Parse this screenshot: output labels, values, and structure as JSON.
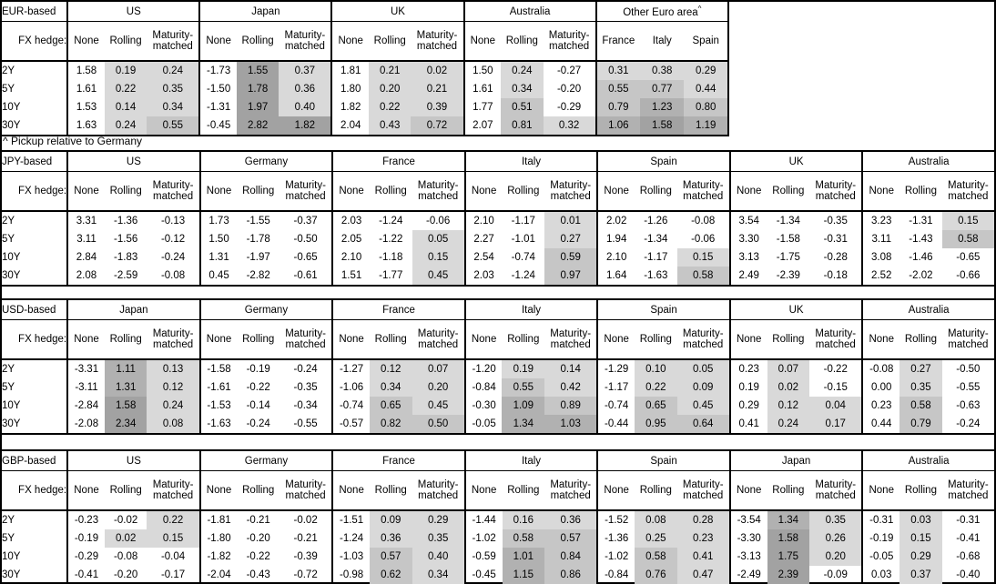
{
  "note": "^ Pickup relative to Germany",
  "fx_hedge_label": "FX hedge:",
  "row_labels": [
    "2Y",
    "5Y",
    "10Y",
    "30Y"
  ],
  "standard_columns": [
    "None",
    "Rolling",
    "Maturity-matched"
  ],
  "shade_colors": {
    "band_0_to_0p5": "#d9d9d9",
    "band_0p5_to_1": "#c6c6c6",
    "band_1_to_1p5": "#b1b1b1",
    "band_above_1p5": "#a2a2a2",
    "negative_or_none": "#ffffff"
  },
  "tables": [
    {
      "title": "EUR-based",
      "groups": [
        {
          "name": "US",
          "cols": [
            "None",
            "Rolling",
            "Maturity-matched"
          ],
          "rows": [
            [
              "1.58",
              "0.19",
              "0.24"
            ],
            [
              "1.61",
              "0.22",
              "0.35"
            ],
            [
              "1.53",
              "0.14",
              "0.34"
            ],
            [
              "1.63",
              "0.24",
              "0.55"
            ]
          ]
        },
        {
          "name": "Japan",
          "cols": [
            "None",
            "Rolling",
            "Maturity-matched"
          ],
          "rows": [
            [
              "-1.73",
              "1.55",
              "0.37"
            ],
            [
              "-1.50",
              "1.78",
              "0.36"
            ],
            [
              "-1.31",
              "1.97",
              "0.40"
            ],
            [
              "-0.45",
              "2.82",
              "1.82"
            ]
          ]
        },
        {
          "name": "UK",
          "cols": [
            "None",
            "Rolling",
            "Maturity-matched"
          ],
          "rows": [
            [
              "1.81",
              "0.21",
              "0.02"
            ],
            [
              "1.80",
              "0.20",
              "0.21"
            ],
            [
              "1.82",
              "0.22",
              "0.39"
            ],
            [
              "2.04",
              "0.43",
              "0.72"
            ]
          ]
        },
        {
          "name": "Australia",
          "cols": [
            "None",
            "Rolling",
            "Maturity-matched"
          ],
          "rows": [
            [
              "1.50",
              "0.24",
              "-0.27"
            ],
            [
              "1.61",
              "0.34",
              "-0.20"
            ],
            [
              "1.77",
              "0.51",
              "-0.29"
            ],
            [
              "2.07",
              "0.81",
              "0.32"
            ]
          ]
        },
        {
          "name": "Other Euro area^",
          "cols": [
            "France",
            "Italy",
            "Spain"
          ],
          "rows": [
            [
              "0.31",
              "0.38",
              "0.29"
            ],
            [
              "0.55",
              "0.77",
              "0.44"
            ],
            [
              "0.79",
              "1.23",
              "0.80"
            ],
            [
              "1.06",
              "1.58",
              "1.19"
            ]
          ]
        }
      ]
    },
    {
      "title": "JPY-based",
      "groups": [
        {
          "name": "US",
          "cols": [
            "None",
            "Rolling",
            "Maturity-matched"
          ],
          "rows": [
            [
              "3.31",
              "-1.36",
              "-0.13"
            ],
            [
              "3.11",
              "-1.56",
              "-0.12"
            ],
            [
              "2.84",
              "-1.83",
              "-0.24"
            ],
            [
              "2.08",
              "-2.59",
              "-0.08"
            ]
          ]
        },
        {
          "name": "Germany",
          "cols": [
            "None",
            "Rolling",
            "Maturity-matched"
          ],
          "rows": [
            [
              "1.73",
              "-1.55",
              "-0.37"
            ],
            [
              "1.50",
              "-1.78",
              "-0.50"
            ],
            [
              "1.31",
              "-1.97",
              "-0.65"
            ],
            [
              "0.45",
              "-2.82",
              "-0.61"
            ]
          ]
        },
        {
          "name": "France",
          "cols": [
            "None",
            "Rolling",
            "Maturity-matched"
          ],
          "rows": [
            [
              "2.03",
              "-1.24",
              "-0.06"
            ],
            [
              "2.05",
              "-1.22",
              "0.05"
            ],
            [
              "2.10",
              "-1.18",
              "0.15"
            ],
            [
              "1.51",
              "-1.77",
              "0.45"
            ]
          ]
        },
        {
          "name": "Italy",
          "cols": [
            "None",
            "Rolling",
            "Maturity-matched"
          ],
          "rows": [
            [
              "2.10",
              "-1.17",
              "0.01"
            ],
            [
              "2.27",
              "-1.01",
              "0.27"
            ],
            [
              "2.54",
              "-0.74",
              "0.59"
            ],
            [
              "2.03",
              "-1.24",
              "0.97"
            ]
          ]
        },
        {
          "name": "Spain",
          "cols": [
            "None",
            "Rolling",
            "Maturity-matched"
          ],
          "rows": [
            [
              "2.02",
              "-1.26",
              "-0.08"
            ],
            [
              "1.94",
              "-1.34",
              "-0.06"
            ],
            [
              "2.10",
              "-1.17",
              "0.15"
            ],
            [
              "1.64",
              "-1.63",
              "0.58"
            ]
          ]
        },
        {
          "name": "UK",
          "cols": [
            "None",
            "Rolling",
            "Maturity-matched"
          ],
          "rows": [
            [
              "3.54",
              "-1.34",
              "-0.35"
            ],
            [
              "3.30",
              "-1.58",
              "-0.31"
            ],
            [
              "3.13",
              "-1.75",
              "-0.28"
            ],
            [
              "2.49",
              "-2.39",
              "-0.18"
            ]
          ]
        },
        {
          "name": "Australia",
          "cols": [
            "None",
            "Rolling",
            "Maturity-matched"
          ],
          "rows": [
            [
              "3.23",
              "-1.31",
              "0.15"
            ],
            [
              "3.11",
              "-1.43",
              "0.58"
            ],
            [
              "3.08",
              "-1.46",
              "-0.65"
            ],
            [
              "2.52",
              "-2.02",
              "-0.66"
            ]
          ]
        }
      ]
    },
    {
      "title": "USD-based",
      "groups": [
        {
          "name": "Japan",
          "cols": [
            "None",
            "Rolling",
            "Maturity-matched"
          ],
          "rows": [
            [
              "-3.31",
              "1.11",
              "0.13"
            ],
            [
              "-3.11",
              "1.31",
              "0.12"
            ],
            [
              "-2.84",
              "1.58",
              "0.24"
            ],
            [
              "-2.08",
              "2.34",
              "0.08"
            ]
          ]
        },
        {
          "name": "Germany",
          "cols": [
            "None",
            "Rolling",
            "Maturity-matched"
          ],
          "rows": [
            [
              "-1.58",
              "-0.19",
              "-0.24"
            ],
            [
              "-1.61",
              "-0.22",
              "-0.35"
            ],
            [
              "-1.53",
              "-0.14",
              "-0.34"
            ],
            [
              "-1.63",
              "-0.24",
              "-0.55"
            ]
          ]
        },
        {
          "name": "France",
          "cols": [
            "None",
            "Rolling",
            "Maturity-matched"
          ],
          "rows": [
            [
              "-1.27",
              "0.12",
              "0.07"
            ],
            [
              "-1.06",
              "0.34",
              "0.20"
            ],
            [
              "-0.74",
              "0.65",
              "0.45"
            ],
            [
              "-0.57",
              "0.82",
              "0.50"
            ]
          ]
        },
        {
          "name": "Italy",
          "cols": [
            "None",
            "Rolling",
            "Maturity-matched"
          ],
          "rows": [
            [
              "-1.20",
              "0.19",
              "0.14"
            ],
            [
              "-0.84",
              "0.55",
              "0.42"
            ],
            [
              "-0.30",
              "1.09",
              "0.89"
            ],
            [
              "-0.05",
              "1.34",
              "1.03"
            ]
          ]
        },
        {
          "name": "Spain",
          "cols": [
            "None",
            "Rolling",
            "Maturity-matched"
          ],
          "rows": [
            [
              "-1.29",
              "0.10",
              "0.05"
            ],
            [
              "-1.17",
              "0.22",
              "0.09"
            ],
            [
              "-0.74",
              "0.65",
              "0.45"
            ],
            [
              "-0.44",
              "0.95",
              "0.64"
            ]
          ]
        },
        {
          "name": "UK",
          "cols": [
            "None",
            "Rolling",
            "Maturity-matched"
          ],
          "rows": [
            [
              "0.23",
              "0.07",
              "-0.22"
            ],
            [
              "0.19",
              "0.02",
              "-0.15"
            ],
            [
              "0.29",
              "0.12",
              "0.04"
            ],
            [
              "0.41",
              "0.24",
              "0.17"
            ]
          ]
        },
        {
          "name": "Australia",
          "cols": [
            "None",
            "Rolling",
            "Maturity-matched"
          ],
          "rows": [
            [
              "-0.08",
              "0.27",
              "-0.50"
            ],
            [
              "0.00",
              "0.35",
              "-0.55"
            ],
            [
              "0.23",
              "0.58",
              "-0.63"
            ],
            [
              "0.44",
              "0.79",
              "-0.24"
            ]
          ]
        }
      ]
    },
    {
      "title": "GBP-based",
      "groups": [
        {
          "name": "US",
          "cols": [
            "None",
            "Rolling",
            "Maturity-matched"
          ],
          "rows": [
            [
              "-0.23",
              "-0.02",
              "0.22"
            ],
            [
              "-0.19",
              "0.02",
              "0.15"
            ],
            [
              "-0.29",
              "-0.08",
              "-0.04"
            ],
            [
              "-0.41",
              "-0.20",
              "-0.17"
            ]
          ]
        },
        {
          "name": "Germany",
          "cols": [
            "None",
            "Rolling",
            "Maturity-matched"
          ],
          "rows": [
            [
              "-1.81",
              "-0.21",
              "-0.02"
            ],
            [
              "-1.80",
              "-0.20",
              "-0.21"
            ],
            [
              "-1.82",
              "-0.22",
              "-0.39"
            ],
            [
              "-2.04",
              "-0.43",
              "-0.72"
            ]
          ]
        },
        {
          "name": "France",
          "cols": [
            "None",
            "Rolling",
            "Maturity-matched"
          ],
          "rows": [
            [
              "-1.51",
              "0.09",
              "0.29"
            ],
            [
              "-1.24",
              "0.36",
              "0.35"
            ],
            [
              "-1.03",
              "0.57",
              "0.40"
            ],
            [
              "-0.98",
              "0.62",
              "0.34"
            ]
          ]
        },
        {
          "name": "Italy",
          "cols": [
            "None",
            "Rolling",
            "Maturity-matched"
          ],
          "rows": [
            [
              "-1.44",
              "0.16",
              "0.36"
            ],
            [
              "-1.02",
              "0.58",
              "0.57"
            ],
            [
              "-0.59",
              "1.01",
              "0.84"
            ],
            [
              "-0.45",
              "1.15",
              "0.86"
            ]
          ]
        },
        {
          "name": "Spain",
          "cols": [
            "None",
            "Rolling",
            "Maturity-matched"
          ],
          "rows": [
            [
              "-1.52",
              "0.08",
              "0.28"
            ],
            [
              "-1.36",
              "0.25",
              "0.23"
            ],
            [
              "-1.02",
              "0.58",
              "0.41"
            ],
            [
              "-0.84",
              "0.76",
              "0.47"
            ]
          ]
        },
        {
          "name": "Japan",
          "cols": [
            "None",
            "Rolling",
            "Maturity-matched"
          ],
          "rows": [
            [
              "-3.54",
              "1.34",
              "0.35"
            ],
            [
              "-3.30",
              "1.58",
              "0.26"
            ],
            [
              "-3.13",
              "1.75",
              "0.20"
            ],
            [
              "-2.49",
              "2.39",
              "-0.09"
            ]
          ]
        },
        {
          "name": "Australia",
          "cols": [
            "None",
            "Rolling",
            "Maturity-matched"
          ],
          "rows": [
            [
              "-0.31",
              "0.03",
              "-0.31"
            ],
            [
              "-0.19",
              "0.15",
              "-0.41"
            ],
            [
              "-0.05",
              "0.29",
              "-0.68"
            ],
            [
              "0.03",
              "0.37",
              "-0.40"
            ]
          ]
        }
      ]
    }
  ]
}
